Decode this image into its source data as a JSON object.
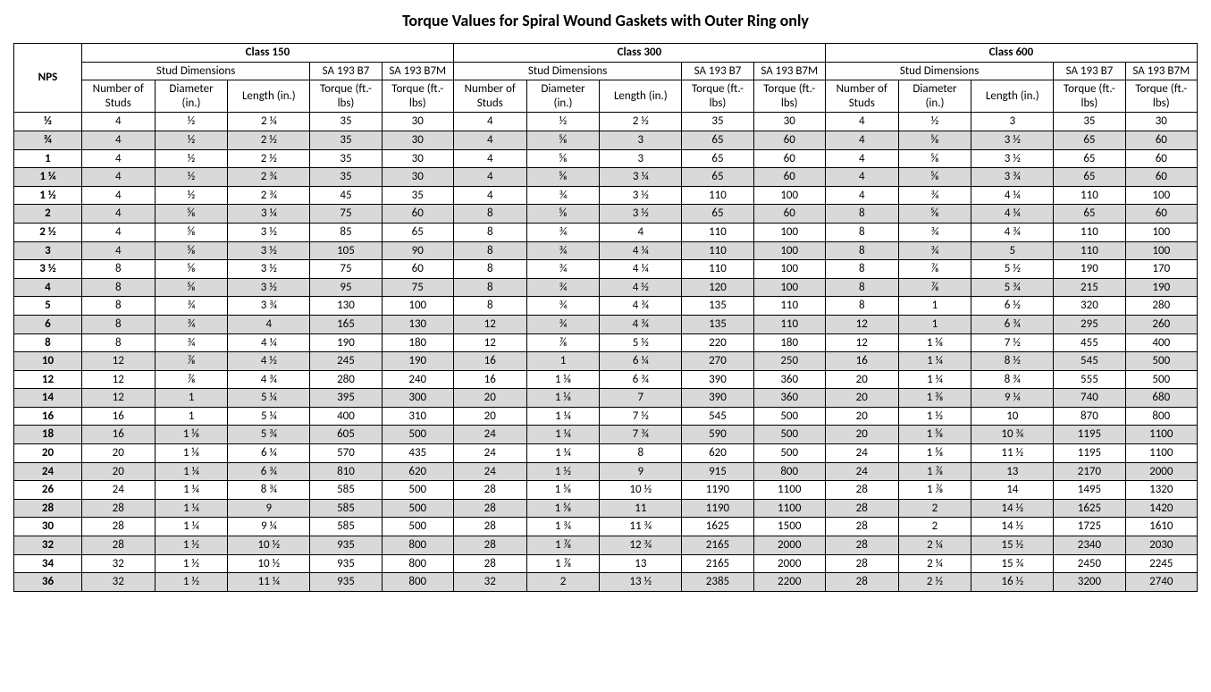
{
  "title": "Torque Values for Spiral Wound Gaskets with Outer Ring only",
  "table": {
    "type": "table",
    "background_color": "#ffffff",
    "shade_color": "#d9d9d9",
    "border_color": "#000000",
    "font_family": "Calibri",
    "title_fontsize": 18,
    "body_fontsize": 13,
    "header": {
      "row_label": "NPS",
      "classes": [
        "Class 150",
        "Class 300",
        "Class 600"
      ],
      "group_labels": {
        "stud": "Stud Dimensions",
        "b7": "SA 193 B7",
        "b7m": "SA 193 B7M"
      },
      "col_labels": {
        "num": "Number of Studs",
        "dia": "Diameter (in.)",
        "len": "Length (in.)",
        "len_short": "Length (in.)",
        "torque": "Torque (ft.-lbs)"
      }
    },
    "rows": [
      {
        "nps": "½",
        "shaded": false,
        "c150": {
          "n": "4",
          "d": "½",
          "l": "2 ¼",
          "b7": "35",
          "b7m": "30"
        },
        "c300": {
          "n": "4",
          "d": "½",
          "l": "2 ½",
          "b7": "35",
          "b7m": "30"
        },
        "c600": {
          "n": "4",
          "d": "½",
          "l": "3",
          "b7": "35",
          "b7m": "30"
        }
      },
      {
        "nps": "¾",
        "shaded": true,
        "c150": {
          "n": "4",
          "d": "½",
          "l": "2 ½",
          "b7": "35",
          "b7m": "30"
        },
        "c300": {
          "n": "4",
          "d": "⅝",
          "l": "3",
          "b7": "65",
          "b7m": "60"
        },
        "c600": {
          "n": "4",
          "d": "⅝",
          "l": "3 ½",
          "b7": "65",
          "b7m": "60"
        }
      },
      {
        "nps": "1",
        "shaded": false,
        "c150": {
          "n": "4",
          "d": "½",
          "l": "2 ½",
          "b7": "35",
          "b7m": "30"
        },
        "c300": {
          "n": "4",
          "d": "⅝",
          "l": "3",
          "b7": "65",
          "b7m": "60"
        },
        "c600": {
          "n": "4",
          "d": "⅝",
          "l": "3 ½",
          "b7": "65",
          "b7m": "60"
        }
      },
      {
        "nps": "1 ¼",
        "shaded": true,
        "c150": {
          "n": "4",
          "d": "½",
          "l": "2 ¾",
          "b7": "35",
          "b7m": "30"
        },
        "c300": {
          "n": "4",
          "d": "⅝",
          "l": "3 ¼",
          "b7": "65",
          "b7m": "60"
        },
        "c600": {
          "n": "4",
          "d": "⅝",
          "l": "3 ¾",
          "b7": "65",
          "b7m": "60"
        }
      },
      {
        "nps": "1 ½",
        "shaded": false,
        "c150": {
          "n": "4",
          "d": "½",
          "l": "2 ¾",
          "b7": "45",
          "b7m": "35"
        },
        "c300": {
          "n": "4",
          "d": "¾",
          "l": "3 ½",
          "b7": "110",
          "b7m": "100"
        },
        "c600": {
          "n": "4",
          "d": "¾",
          "l": "4 ¼",
          "b7": "110",
          "b7m": "100"
        }
      },
      {
        "nps": "2",
        "shaded": true,
        "c150": {
          "n": "4",
          "d": "⅝",
          "l": "3 ¼",
          "b7": "75",
          "b7m": "60"
        },
        "c300": {
          "n": "8",
          "d": "⅝",
          "l": "3 ½",
          "b7": "65",
          "b7m": "60"
        },
        "c600": {
          "n": "8",
          "d": "⅝",
          "l": "4 ¼",
          "b7": "65",
          "b7m": "60"
        }
      },
      {
        "nps": "2 ½",
        "shaded": false,
        "c150": {
          "n": "4",
          "d": "⅝",
          "l": "3 ½",
          "b7": "85",
          "b7m": "65"
        },
        "c300": {
          "n": "8",
          "d": "¾",
          "l": "4",
          "b7": "110",
          "b7m": "100"
        },
        "c600": {
          "n": "8",
          "d": "¾",
          "l": "4 ¾",
          "b7": "110",
          "b7m": "100"
        }
      },
      {
        "nps": "3",
        "shaded": true,
        "c150": {
          "n": "4",
          "d": "⅝",
          "l": "3 ½",
          "b7": "105",
          "b7m": "90"
        },
        "c300": {
          "n": "8",
          "d": "¾",
          "l": "4 ¼",
          "b7": "110",
          "b7m": "100"
        },
        "c600": {
          "n": "8",
          "d": "¾",
          "l": "5",
          "b7": "110",
          "b7m": "100"
        }
      },
      {
        "nps": "3 ½",
        "shaded": false,
        "c150": {
          "n": "8",
          "d": "⅝",
          "l": "3 ½",
          "b7": "75",
          "b7m": "60"
        },
        "c300": {
          "n": "8",
          "d": "¾",
          "l": "4 ¼",
          "b7": "110",
          "b7m": "100"
        },
        "c600": {
          "n": "8",
          "d": "⅞",
          "l": "5 ½",
          "b7": "190",
          "b7m": "170"
        }
      },
      {
        "nps": "4",
        "shaded": true,
        "c150": {
          "n": "8",
          "d": "⅝",
          "l": "3 ½",
          "b7": "95",
          "b7m": "75"
        },
        "c300": {
          "n": "8",
          "d": "¾",
          "l": "4 ½",
          "b7": "120",
          "b7m": "100"
        },
        "c600": {
          "n": "8",
          "d": "⅞",
          "l": "5 ¾",
          "b7": "215",
          "b7m": "190"
        }
      },
      {
        "nps": "5",
        "shaded": false,
        "c150": {
          "n": "8",
          "d": "¾",
          "l": "3 ¾",
          "b7": "130",
          "b7m": "100"
        },
        "c300": {
          "n": "8",
          "d": "¾",
          "l": "4 ¾",
          "b7": "135",
          "b7m": "110"
        },
        "c600": {
          "n": "8",
          "d": "1",
          "l": "6 ½",
          "b7": "320",
          "b7m": "280"
        }
      },
      {
        "nps": "6",
        "shaded": true,
        "c150": {
          "n": "8",
          "d": "¾",
          "l": "4",
          "b7": "165",
          "b7m": "130"
        },
        "c300": {
          "n": "12",
          "d": "¾",
          "l": "4 ¾",
          "b7": "135",
          "b7m": "110"
        },
        "c600": {
          "n": "12",
          "d": "1",
          "l": "6 ¾",
          "b7": "295",
          "b7m": "260"
        }
      },
      {
        "nps": "8",
        "shaded": false,
        "c150": {
          "n": "8",
          "d": "¾",
          "l": "4 ¼",
          "b7": "190",
          "b7m": "180"
        },
        "c300": {
          "n": "12",
          "d": "⅞",
          "l": "5 ½",
          "b7": "220",
          "b7m": "180"
        },
        "c600": {
          "n": "12",
          "d": "1 ⅛",
          "l": "7 ½",
          "b7": "455",
          "b7m": "400"
        }
      },
      {
        "nps": "10",
        "shaded": true,
        "c150": {
          "n": "12",
          "d": "⅞",
          "l": "4 ½",
          "b7": "245",
          "b7m": "190"
        },
        "c300": {
          "n": "16",
          "d": "1",
          "l": "6 ¼",
          "b7": "270",
          "b7m": "250"
        },
        "c600": {
          "n": "16",
          "d": "1 ¼",
          "l": "8 ½",
          "b7": "545",
          "b7m": "500"
        }
      },
      {
        "nps": "12",
        "shaded": false,
        "c150": {
          "n": "12",
          "d": "⅞",
          "l": "4 ¾",
          "b7": "280",
          "b7m": "240"
        },
        "c300": {
          "n": "16",
          "d": "1 ⅛",
          "l": "6 ¾",
          "b7": "390",
          "b7m": "360"
        },
        "c600": {
          "n": "20",
          "d": "1 ¼",
          "l": "8 ¾",
          "b7": "555",
          "b7m": "500"
        }
      },
      {
        "nps": "14",
        "shaded": true,
        "c150": {
          "n": "12",
          "d": "1",
          "l": "5 ¼",
          "b7": "395",
          "b7m": "300"
        },
        "c300": {
          "n": "20",
          "d": "1 ⅛",
          "l": "7",
          "b7": "390",
          "b7m": "360"
        },
        "c600": {
          "n": "20",
          "d": "1 ⅜",
          "l": "9 ¼",
          "b7": "740",
          "b7m": "680"
        }
      },
      {
        "nps": "16",
        "shaded": false,
        "c150": {
          "n": "16",
          "d": "1",
          "l": "5 ¼",
          "b7": "400",
          "b7m": "310"
        },
        "c300": {
          "n": "20",
          "d": "1 ¼",
          "l": "7 ½",
          "b7": "545",
          "b7m": "500"
        },
        "c600": {
          "n": "20",
          "d": "1 ½",
          "l": "10",
          "b7": "870",
          "b7m": "800"
        }
      },
      {
        "nps": "18",
        "shaded": true,
        "c150": {
          "n": "16",
          "d": "1 ⅛",
          "l": "5 ¾",
          "b7": "605",
          "b7m": "500"
        },
        "c300": {
          "n": "24",
          "d": "1 ¼",
          "l": "7 ¾",
          "b7": "590",
          "b7m": "500"
        },
        "c600": {
          "n": "20",
          "d": "1 ⅝",
          "l": "10 ¾",
          "b7": "1195",
          "b7m": "1100"
        }
      },
      {
        "nps": "20",
        "shaded": false,
        "c150": {
          "n": "20",
          "d": "1 ⅛",
          "l": "6 ¼",
          "b7": "570",
          "b7m": "435"
        },
        "c300": {
          "n": "24",
          "d": "1 ¼",
          "l": "8",
          "b7": "620",
          "b7m": "500"
        },
        "c600": {
          "n": "24",
          "d": "1 ⅝",
          "l": "11 ½",
          "b7": "1195",
          "b7m": "1100"
        }
      },
      {
        "nps": "24",
        "shaded": true,
        "c150": {
          "n": "20",
          "d": "1 ¼",
          "l": "6 ¾",
          "b7": "810",
          "b7m": "620"
        },
        "c300": {
          "n": "24",
          "d": "1 ½",
          "l": "9",
          "b7": "915",
          "b7m": "800"
        },
        "c600": {
          "n": "24",
          "d": "1 ⅞",
          "l": "13",
          "b7": "2170",
          "b7m": "2000"
        }
      },
      {
        "nps": "26",
        "shaded": false,
        "c150": {
          "n": "24",
          "d": "1 ¼",
          "l": "8 ¾",
          "b7": "585",
          "b7m": "500"
        },
        "c300": {
          "n": "28",
          "d": "1 ⅝",
          "l": "10 ½",
          "b7": "1190",
          "b7m": "1100"
        },
        "c600": {
          "n": "28",
          "d": "1 ⅞",
          "l": "14",
          "b7": "1495",
          "b7m": "1320"
        }
      },
      {
        "nps": "28",
        "shaded": true,
        "c150": {
          "n": "28",
          "d": "1 ¼",
          "l": "9",
          "b7": "585",
          "b7m": "500"
        },
        "c300": {
          "n": "28",
          "d": "1 ⅝",
          "l": "11",
          "b7": "1190",
          "b7m": "1100"
        },
        "c600": {
          "n": "28",
          "d": "2",
          "l": "14 ½",
          "b7": "1625",
          "b7m": "1420"
        }
      },
      {
        "nps": "30",
        "shaded": false,
        "c150": {
          "n": "28",
          "d": "1 ¼",
          "l": "9 ¼",
          "b7": "585",
          "b7m": "500"
        },
        "c300": {
          "n": "28",
          "d": "1 ¾",
          "l": "11 ¾",
          "b7": "1625",
          "b7m": "1500"
        },
        "c600": {
          "n": "28",
          "d": "2",
          "l": "14 ½",
          "b7": "1725",
          "b7m": "1610"
        }
      },
      {
        "nps": "32",
        "shaded": true,
        "c150": {
          "n": "28",
          "d": "1 ½",
          "l": "10 ½",
          "b7": "935",
          "b7m": "800"
        },
        "c300": {
          "n": "28",
          "d": "1 ⅞",
          "l": "12 ¾",
          "b7": "2165",
          "b7m": "2000"
        },
        "c600": {
          "n": "28",
          "d": "2 ¼",
          "l": "15 ½",
          "b7": "2340",
          "b7m": "2030"
        }
      },
      {
        "nps": "34",
        "shaded": false,
        "c150": {
          "n": "32",
          "d": "1 ½",
          "l": "10 ½",
          "b7": "935",
          "b7m": "800"
        },
        "c300": {
          "n": "28",
          "d": "1 ⅞",
          "l": "13",
          "b7": "2165",
          "b7m": "2000"
        },
        "c600": {
          "n": "28",
          "d": "2 ¼",
          "l": "15 ¾",
          "b7": "2450",
          "b7m": "2245"
        }
      },
      {
        "nps": "36",
        "shaded": true,
        "c150": {
          "n": "32",
          "d": "1 ½",
          "l": "11 ¼",
          "b7": "935",
          "b7m": "800"
        },
        "c300": {
          "n": "32",
          "d": "2",
          "l": "13 ½",
          "b7": "2385",
          "b7m": "2200"
        },
        "c600": {
          "n": "28",
          "d": "2 ½",
          "l": "16 ½",
          "b7": "3200",
          "b7m": "2740"
        }
      }
    ]
  }
}
